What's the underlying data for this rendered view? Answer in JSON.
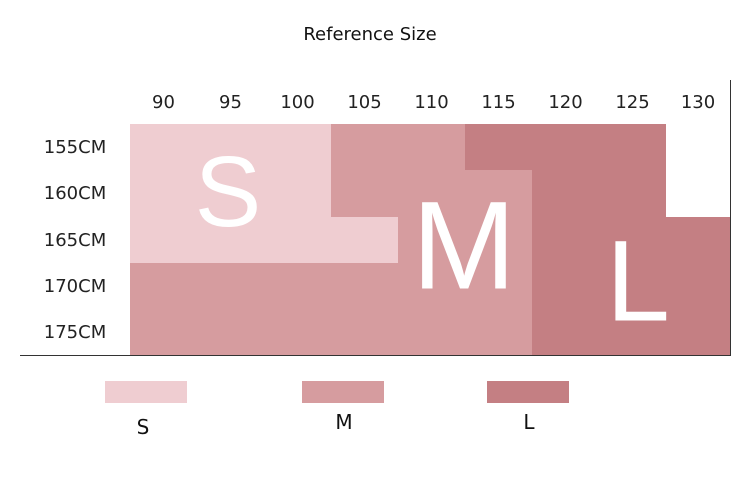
{
  "title": "Reference Size",
  "table": {
    "columns": [
      "90",
      "95",
      "100",
      "105",
      "110",
      "115",
      "120",
      "125",
      "130"
    ],
    "rows": [
      "155CM",
      "160CM",
      "165CM",
      "170CM",
      "175CM"
    ]
  },
  "overlay": [
    "S",
    "M",
    "L"
  ],
  "legend": [
    {
      "label": "S",
      "color": "#efcdd1"
    },
    {
      "label": "M",
      "color": "#d69c9f"
    },
    {
      "label": "L",
      "color": "#c47f83"
    }
  ]
}
